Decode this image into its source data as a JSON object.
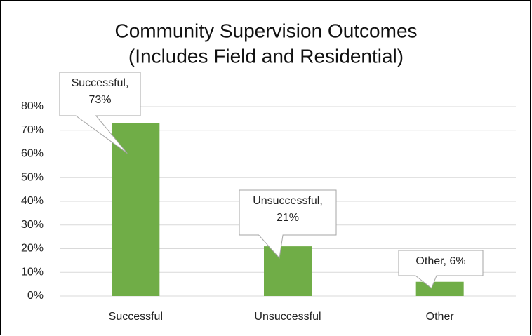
{
  "chart_data": {
    "type": "bar",
    "title": [
      "Community Supervision Outcomes",
      "(Includes Field and Residential)"
    ],
    "categories": [
      "Successful",
      "Unsuccessful",
      "Other"
    ],
    "values": [
      73,
      21,
      6
    ],
    "value_labels": [
      "Successful, 73%",
      "Unsuccessful, 21%",
      "Other, 6%"
    ],
    "color": "#70ad47",
    "ylim": [
      0,
      80
    ],
    "yticks": [
      {
        "value": 0,
        "label": "0%"
      },
      {
        "value": 10,
        "label": "10%"
      },
      {
        "value": 20,
        "label": "20%"
      },
      {
        "value": 30,
        "label": "30%"
      },
      {
        "value": 40,
        "label": "40%"
      },
      {
        "value": 50,
        "label": "50%"
      },
      {
        "value": 60,
        "label": "60%"
      },
      {
        "value": 70,
        "label": "70%"
      },
      {
        "value": 80,
        "label": "80%"
      }
    ],
    "grid": true
  }
}
